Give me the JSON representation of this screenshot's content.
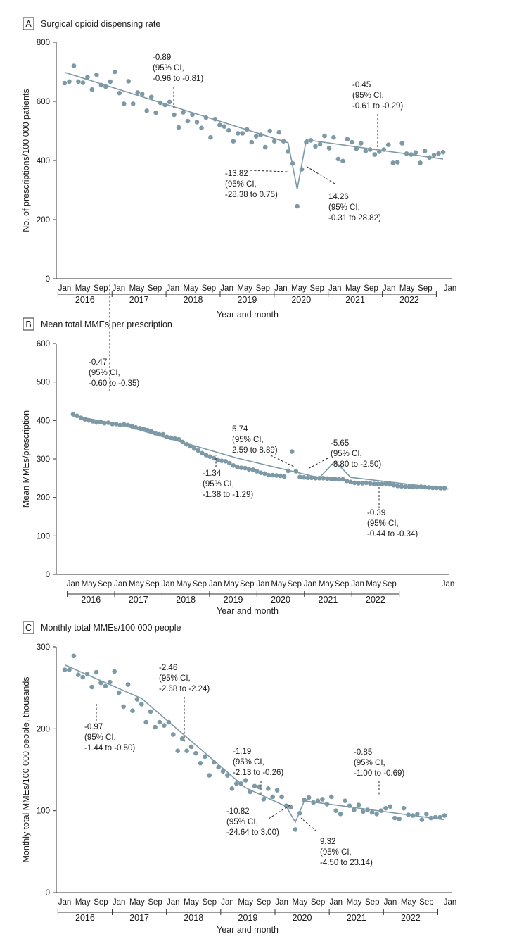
{
  "chart_data": [
    {
      "panel": "A",
      "title": "Surgical opioid dispensing rate",
      "type": "scatter",
      "xlabel": "Year and month",
      "ylabel": "No. of prescriptions/100 000 patients",
      "ylim": [
        0,
        800
      ],
      "yticks": [
        "0",
        "200",
        "400",
        "600",
        "800"
      ],
      "month_labels": [
        "Jan",
        "May",
        "Sep"
      ],
      "final_label": "Jan",
      "years": [
        "2016",
        "2017",
        "2018",
        "2019",
        "2020",
        "2021",
        "2022"
      ],
      "grid": false,
      "legend": "none",
      "points": [
        662,
        667,
        720,
        667,
        663,
        682,
        640,
        690,
        655,
        650,
        667,
        700,
        628,
        592,
        668,
        592,
        630,
        625,
        568,
        615,
        562,
        595,
        588,
        598,
        555,
        512,
        563,
        533,
        555,
        530,
        510,
        545,
        478,
        540,
        520,
        515,
        502,
        465,
        492,
        492,
        505,
        462,
        482,
        487,
        445,
        500,
        465,
        495,
        465,
        430,
        390,
        245,
        370,
        462,
        468,
        448,
        455,
        483,
        442,
        478,
        405,
        398,
        472,
        462,
        440,
        458,
        432,
        437,
        420,
        430,
        437,
        453,
        392,
        394,
        458,
        423,
        420,
        427,
        392,
        432,
        410,
        418,
        423,
        428
      ],
      "fit": [
        [
          0,
          698
        ],
        [
          49,
          460
        ],
        [
          51,
          303
        ],
        [
          53,
          470
        ],
        [
          83,
          405
        ]
      ],
      "annotations": [
        {
          "lines": [
            "-0.89",
            "(95% CI,",
            "-0.96 to -0.81)"
          ],
          "idx": 24
        },
        {
          "lines": [
            "-0.45",
            "(95% CI,",
            "-0.61 to -0.29)"
          ],
          "idx": 70
        },
        {
          "lines": [
            "-13.82",
            "(95% CI,",
            "-28.38 to 0.75)"
          ],
          "idx": 50
        },
        {
          "lines": [
            "14.26",
            "(95% CI,",
            "-0.31 to 28.82)"
          ],
          "idx": 52
        }
      ]
    },
    {
      "panel": "B",
      "title": "Mean total MMEs per prescription",
      "type": "scatter",
      "xlabel": "Year and month",
      "ylabel": "Mean MMEs/prescription",
      "ylim": [
        0,
        600
      ],
      "yticks": [
        "0",
        "100",
        "200",
        "300",
        "400",
        "500",
        "600"
      ],
      "month_labels": [
        "Jan",
        "May",
        "Sep"
      ],
      "final_label": "Jan",
      "years": [
        "2016",
        "2017",
        "2018",
        "2019",
        "2020",
        "2021",
        "2022"
      ],
      "grid": false,
      "legend": "none",
      "points": [
        416,
        412,
        407,
        403,
        400,
        398,
        395,
        396,
        393,
        394,
        391,
        391,
        388,
        390,
        388,
        385,
        382,
        380,
        378,
        375,
        372,
        367,
        364,
        364,
        357,
        355,
        353,
        351,
        344,
        338,
        333,
        327,
        322,
        315,
        310,
        306,
        302,
        298,
        295,
        294,
        289,
        283,
        279,
        277,
        276,
        273,
        272,
        268,
        264,
        262,
        258,
        258,
        257,
        256,
        254,
        269,
        319,
        268,
        253,
        252,
        251,
        251,
        250,
        250,
        250,
        249,
        248,
        248,
        247,
        247,
        243,
        240,
        238,
        237,
        237,
        238,
        236,
        235,
        235,
        235,
        236,
        234,
        232,
        230,
        229,
        228,
        228,
        227,
        227,
        228,
        227,
        226,
        225,
        225,
        224,
        224
      ],
      "fit": [
        [
          0,
          412
        ],
        [
          12,
          390
        ],
        [
          42,
          302
        ],
        [
          63,
          251
        ],
        [
          67,
          294
        ],
        [
          71,
          252
        ],
        [
          96,
          222
        ]
      ],
      "annotations": [
        {
          "lines": [
            "-0.47",
            "(95% CI,",
            "-0.60 to -0.35)"
          ],
          "idx": 12
        },
        {
          "lines": [
            "-1.34",
            "(95% CI,",
            "-1.38 to -1.29)"
          ],
          "idx": 42
        },
        {
          "lines": [
            "5.74",
            "(95% CI,",
            "2.59 to 8.89)"
          ],
          "idx": 65
        },
        {
          "lines": [
            "-5.65",
            "(95% CI,",
            "-8.80 to -2.50)"
          ],
          "idx": 69
        },
        {
          "lines": [
            "-0.39",
            "(95% CI,",
            "-0.44 to -0.34)"
          ],
          "idx": 85
        }
      ]
    },
    {
      "panel": "C",
      "title": "Monthly total MMEs/100 000 people",
      "type": "scatter",
      "xlabel": "Year and month",
      "ylabel": "Monthly total MMEs/100 000 people, thousands",
      "ylim": [
        0,
        300
      ],
      "yticks": [
        "0",
        "100",
        "200",
        "300"
      ],
      "month_labels": [
        "Jan",
        "May",
        "Sep"
      ],
      "final_label": "Jan",
      "years": [
        "2016",
        "2017",
        "2018",
        "2019",
        "2020",
        "2021",
        "2022"
      ],
      "grid": false,
      "legend": "none",
      "points": [
        272,
        272,
        289,
        266,
        263,
        267,
        251,
        269,
        256,
        252,
        257,
        270,
        244,
        227,
        254,
        222,
        236,
        230,
        208,
        221,
        202,
        208,
        204,
        208,
        193,
        173,
        188,
        173,
        178,
        170,
        158,
        166,
        143,
        159,
        153,
        148,
        143,
        127,
        133,
        133,
        137,
        123,
        130,
        129,
        114,
        127,
        117,
        125,
        117,
        106,
        104,
        77,
        97,
        113,
        116,
        110,
        112,
        114,
        108,
        117,
        100,
        96,
        112,
        106,
        101,
        107,
        99,
        101,
        98,
        96,
        100,
        103,
        105,
        91,
        90,
        103,
        95,
        94,
        96,
        89,
        96,
        91,
        92,
        92,
        94
      ],
      "fit": [
        [
          0,
          278
        ],
        [
          17,
          237
        ],
        [
          40,
          128
        ],
        [
          49,
          105
        ],
        [
          51,
          86
        ],
        [
          53,
          112
        ],
        [
          84,
          89
        ]
      ],
      "annotations": [
        {
          "lines": [
            "-0.97",
            "(95% CI,",
            "-1.44 to -0.50)"
          ],
          "idx": 7
        },
        {
          "lines": [
            "-2.46",
            "(95% CI,",
            "-2.68 to -2.24)"
          ],
          "idx": 25
        },
        {
          "lines": [
            "-1.19",
            "(95% CI,",
            "-2.13 to -0.26)"
          ],
          "idx": 45
        },
        {
          "lines": [
            "-10.82",
            "(95% CI,",
            "-24.64 to 3.00)"
          ],
          "idx": 50
        },
        {
          "lines": [
            "9.32",
            "(95% CI,",
            "-4.50 to 23.14)"
          ],
          "idx": 52
        },
        {
          "lines": [
            "-0.85",
            "(95% CI,",
            "-1.00 to -0.69)"
          ],
          "idx": 69
        }
      ]
    }
  ]
}
